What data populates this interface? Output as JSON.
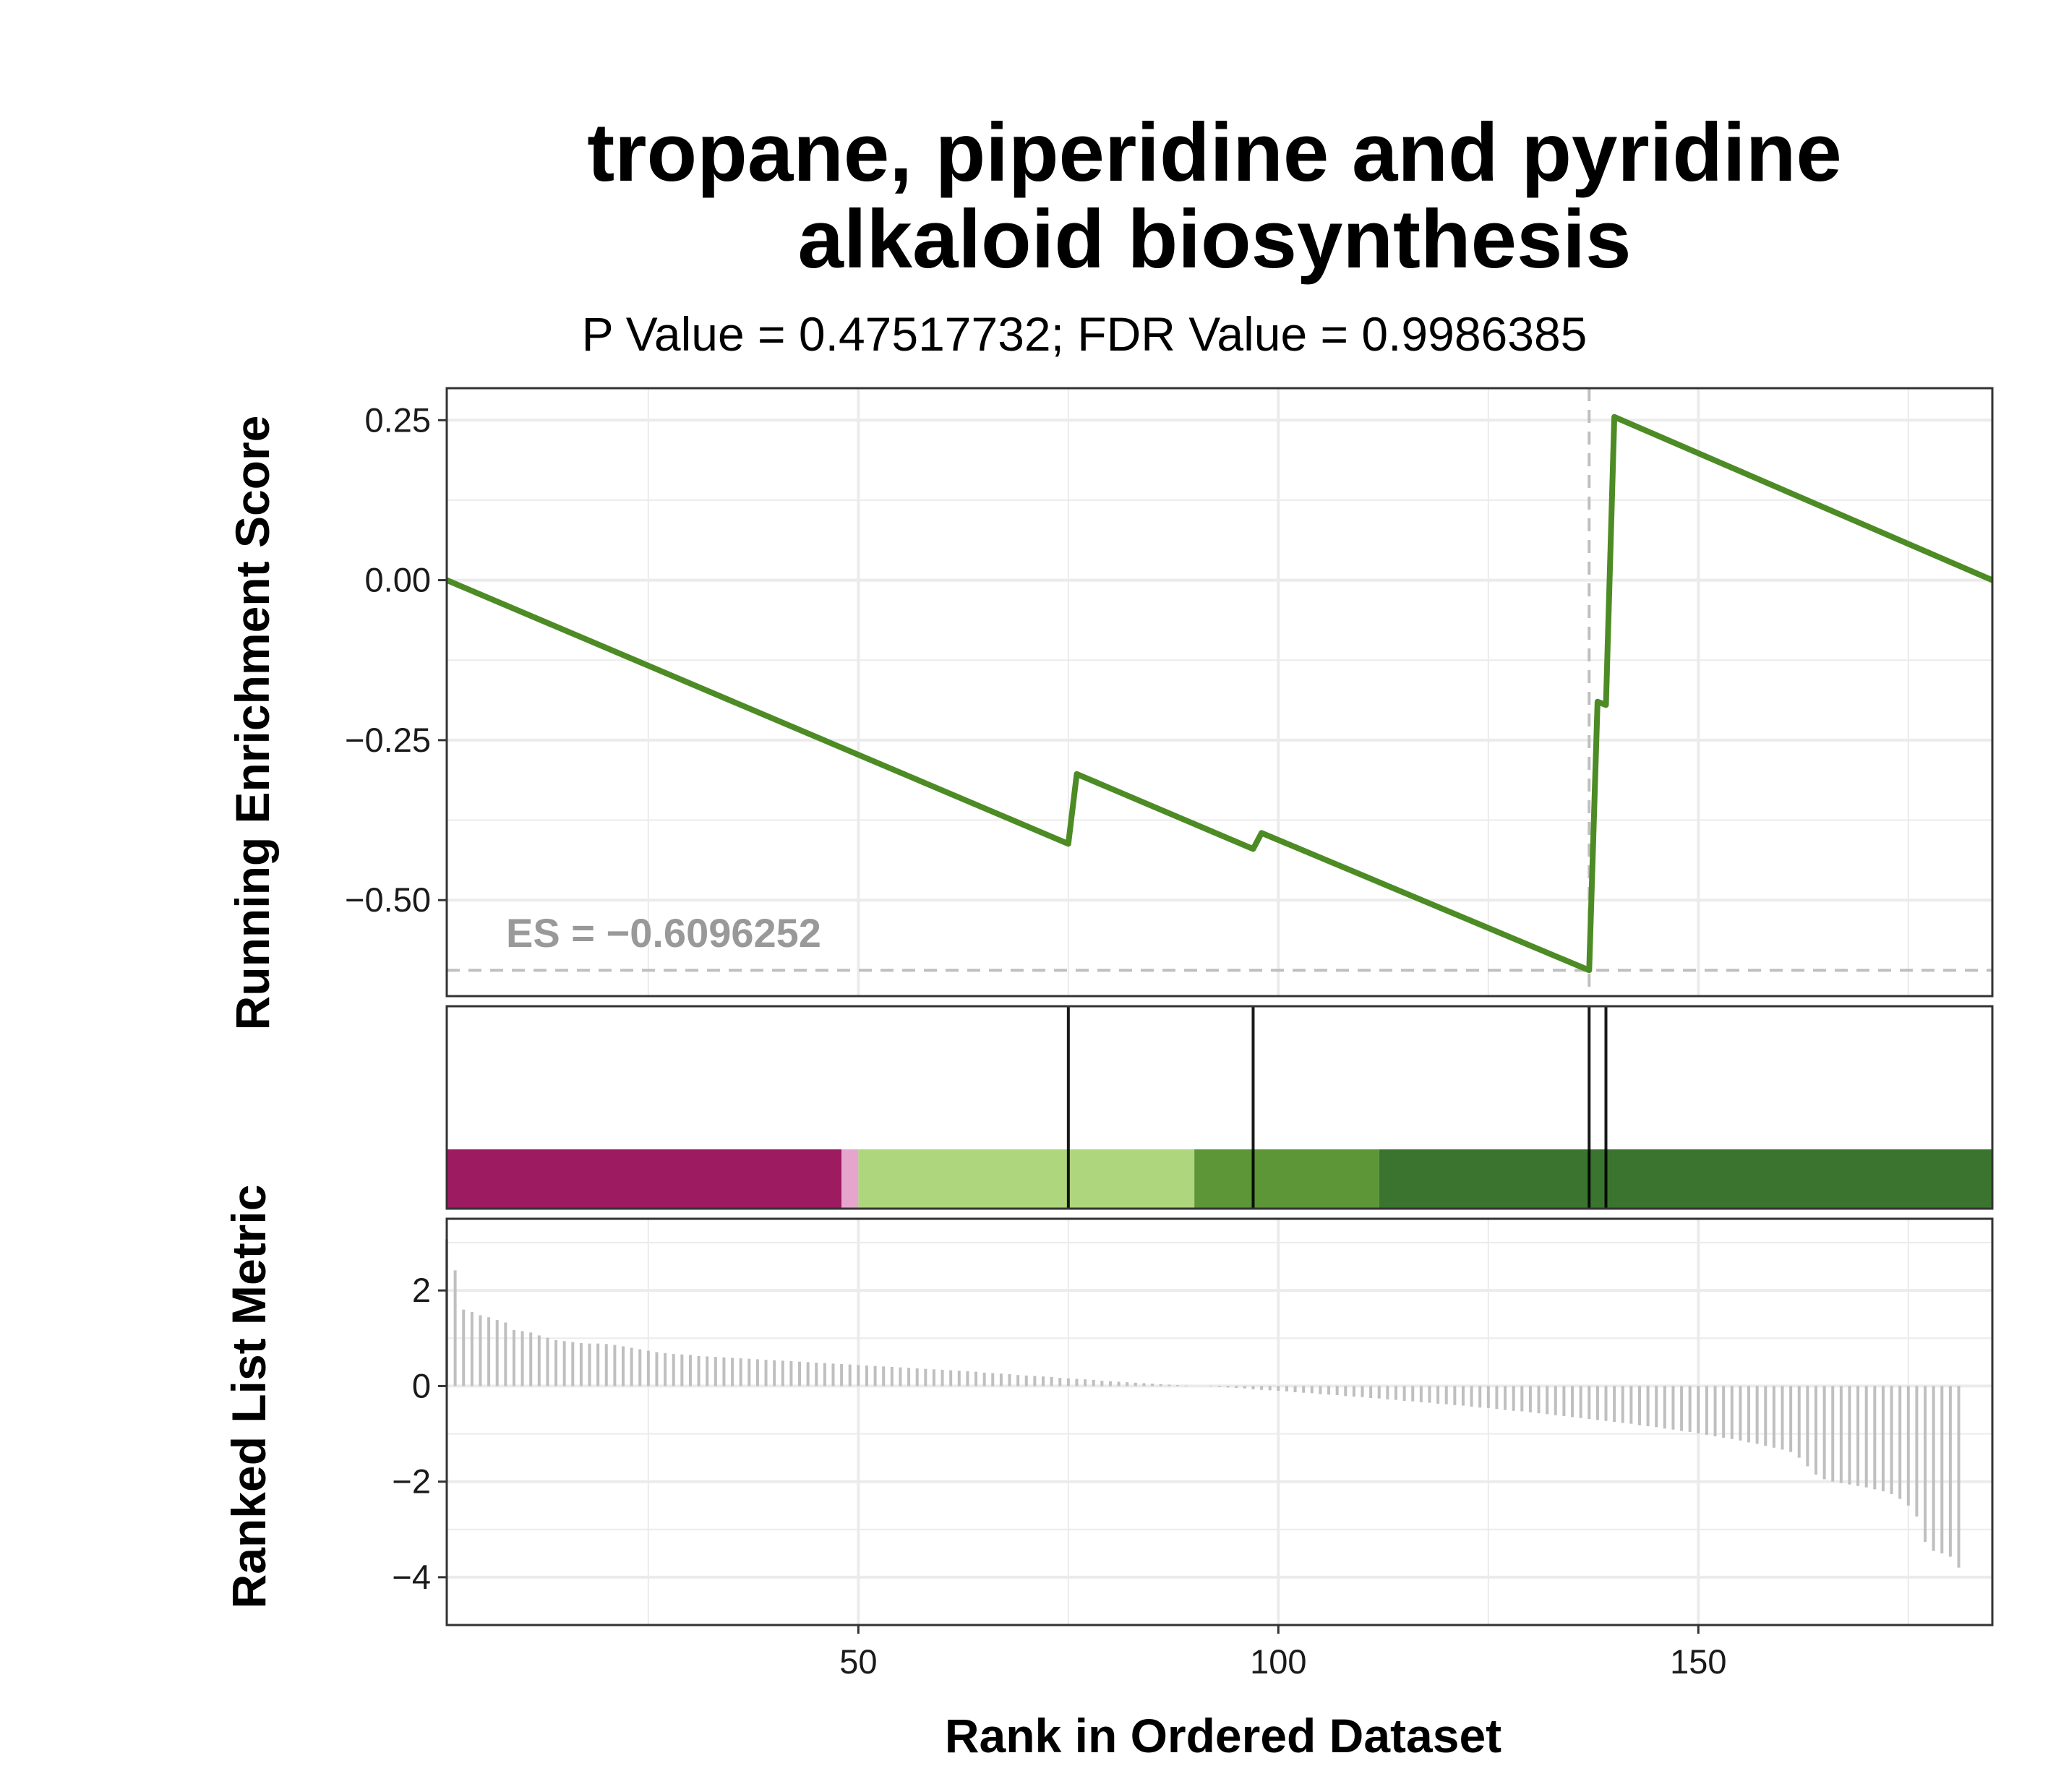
{
  "title_line1": "tropane, piperidine and pyridine",
  "title_line2": "alkaloid biosynthesis",
  "subtitle": "P Value = 0.47517732; FDR Value = 0.9986385",
  "es_label": "ES = −0.6096252",
  "colors": {
    "enrichment_line": "#4d8b25",
    "hit_line": "#000000",
    "metric_bar": "#bfbfbf",
    "dashed": "#bfbfbf",
    "grid": "#ebebeb",
    "es_text": "#999999",
    "heat_segments": [
      "#9d1b61",
      "#e6a5cc",
      "#aed67c",
      "#5c9636",
      "#3b742f"
    ]
  },
  "chart_data": [
    {
      "type": "line",
      "ylabel": "Running Enrichment Score",
      "xlim": [
        1,
        185
      ],
      "ylim": [
        -0.65,
        0.3
      ],
      "yticks": [
        0.25,
        0.0,
        -0.25,
        -0.5
      ],
      "ytick_labels": [
        "0.25",
        "0.00",
        "−0.25",
        "−0.50"
      ],
      "grid": true,
      "es_value": -0.6096252,
      "es_rank": 137,
      "x": [
        1,
        75,
        76,
        97,
        98,
        137,
        138,
        139,
        140,
        185
      ],
      "y": [
        0.0,
        -0.412,
        -0.303,
        -0.42,
        -0.395,
        -0.6096,
        -0.19,
        -0.195,
        0.255,
        0.0
      ]
    },
    {
      "type": "heatmap",
      "hit_ranks": [
        75,
        97,
        137,
        139
      ],
      "color_segments": [
        {
          "from": 1,
          "to": 48,
          "color": "#9d1b61"
        },
        {
          "from": 48,
          "to": 50,
          "color": "#e6a5cc"
        },
        {
          "from": 50,
          "to": 90,
          "color": "#aed67c"
        },
        {
          "from": 90,
          "to": 112,
          "color": "#5c9636"
        },
        {
          "from": 112,
          "to": 185,
          "color": "#3b742f"
        }
      ]
    },
    {
      "type": "bar",
      "ylabel": "Ranked List Metric",
      "xlabel": "Rank in Ordered Dataset",
      "xlim": [
        1,
        185
      ],
      "ylim": [
        -5.0,
        3.5
      ],
      "yticks": [
        2,
        0,
        -2,
        -4
      ],
      "ytick_labels": [
        "2",
        "0",
        "−2",
        "−4"
      ],
      "xticks": [
        50,
        100,
        150
      ],
      "xtick_labels": [
        "50",
        "100",
        "150"
      ],
      "grid": true,
      "values": [
        3.07,
        2.42,
        1.6,
        1.55,
        1.48,
        1.44,
        1.38,
        1.33,
        1.17,
        1.15,
        1.12,
        1.06,
        1.01,
        0.96,
        0.94,
        0.92,
        0.9,
        0.89,
        0.89,
        0.88,
        0.86,
        0.83,
        0.8,
        0.77,
        0.74,
        0.71,
        0.69,
        0.67,
        0.66,
        0.65,
        0.63,
        0.62,
        0.61,
        0.6,
        0.59,
        0.58,
        0.57,
        0.56,
        0.55,
        0.54,
        0.53,
        0.52,
        0.51,
        0.5,
        0.49,
        0.48,
        0.47,
        0.46,
        0.45,
        0.44,
        0.43,
        0.42,
        0.41,
        0.4,
        0.39,
        0.38,
        0.37,
        0.36,
        0.35,
        0.34,
        0.33,
        0.32,
        0.31,
        0.3,
        0.28,
        0.27,
        0.26,
        0.25,
        0.23,
        0.22,
        0.21,
        0.2,
        0.19,
        0.17,
        0.16,
        0.15,
        0.14,
        0.13,
        0.11,
        0.1,
        0.09,
        0.08,
        0.07,
        0.06,
        0.05,
        0.04,
        0.03,
        0.02,
        0.01,
        0.0,
        0.0,
        -0.01,
        -0.02,
        -0.03,
        -0.04,
        -0.05,
        -0.07,
        -0.08,
        -0.09,
        -0.1,
        -0.11,
        -0.13,
        -0.14,
        -0.15,
        -0.17,
        -0.18,
        -0.19,
        -0.21,
        -0.22,
        -0.23,
        -0.25,
        -0.26,
        -0.28,
        -0.29,
        -0.31,
        -0.32,
        -0.34,
        -0.35,
        -0.37,
        -0.38,
        -0.4,
        -0.41,
        -0.43,
        -0.45,
        -0.46,
        -0.48,
        -0.5,
        -0.52,
        -0.53,
        -0.55,
        -0.57,
        -0.59,
        -0.61,
        -0.63,
        -0.65,
        -0.67,
        -0.69,
        -0.71,
        -0.73,
        -0.75,
        -0.77,
        -0.79,
        -0.82,
        -0.84,
        -0.86,
        -0.89,
        -0.91,
        -0.94,
        -0.96,
        -0.99,
        -1.02,
        -1.05,
        -1.08,
        -1.11,
        -1.14,
        -1.18,
        -1.21,
        -1.25,
        -1.29,
        -1.33,
        -1.38,
        -1.5,
        -1.68,
        -1.85,
        -1.95,
        -2.0,
        -2.03,
        -2.06,
        -2.09,
        -2.12,
        -2.16,
        -2.2,
        -2.26,
        -2.36,
        -2.5,
        -2.73,
        -3.26,
        -3.45,
        -3.5,
        -3.57,
        -3.8
      ]
    }
  ]
}
